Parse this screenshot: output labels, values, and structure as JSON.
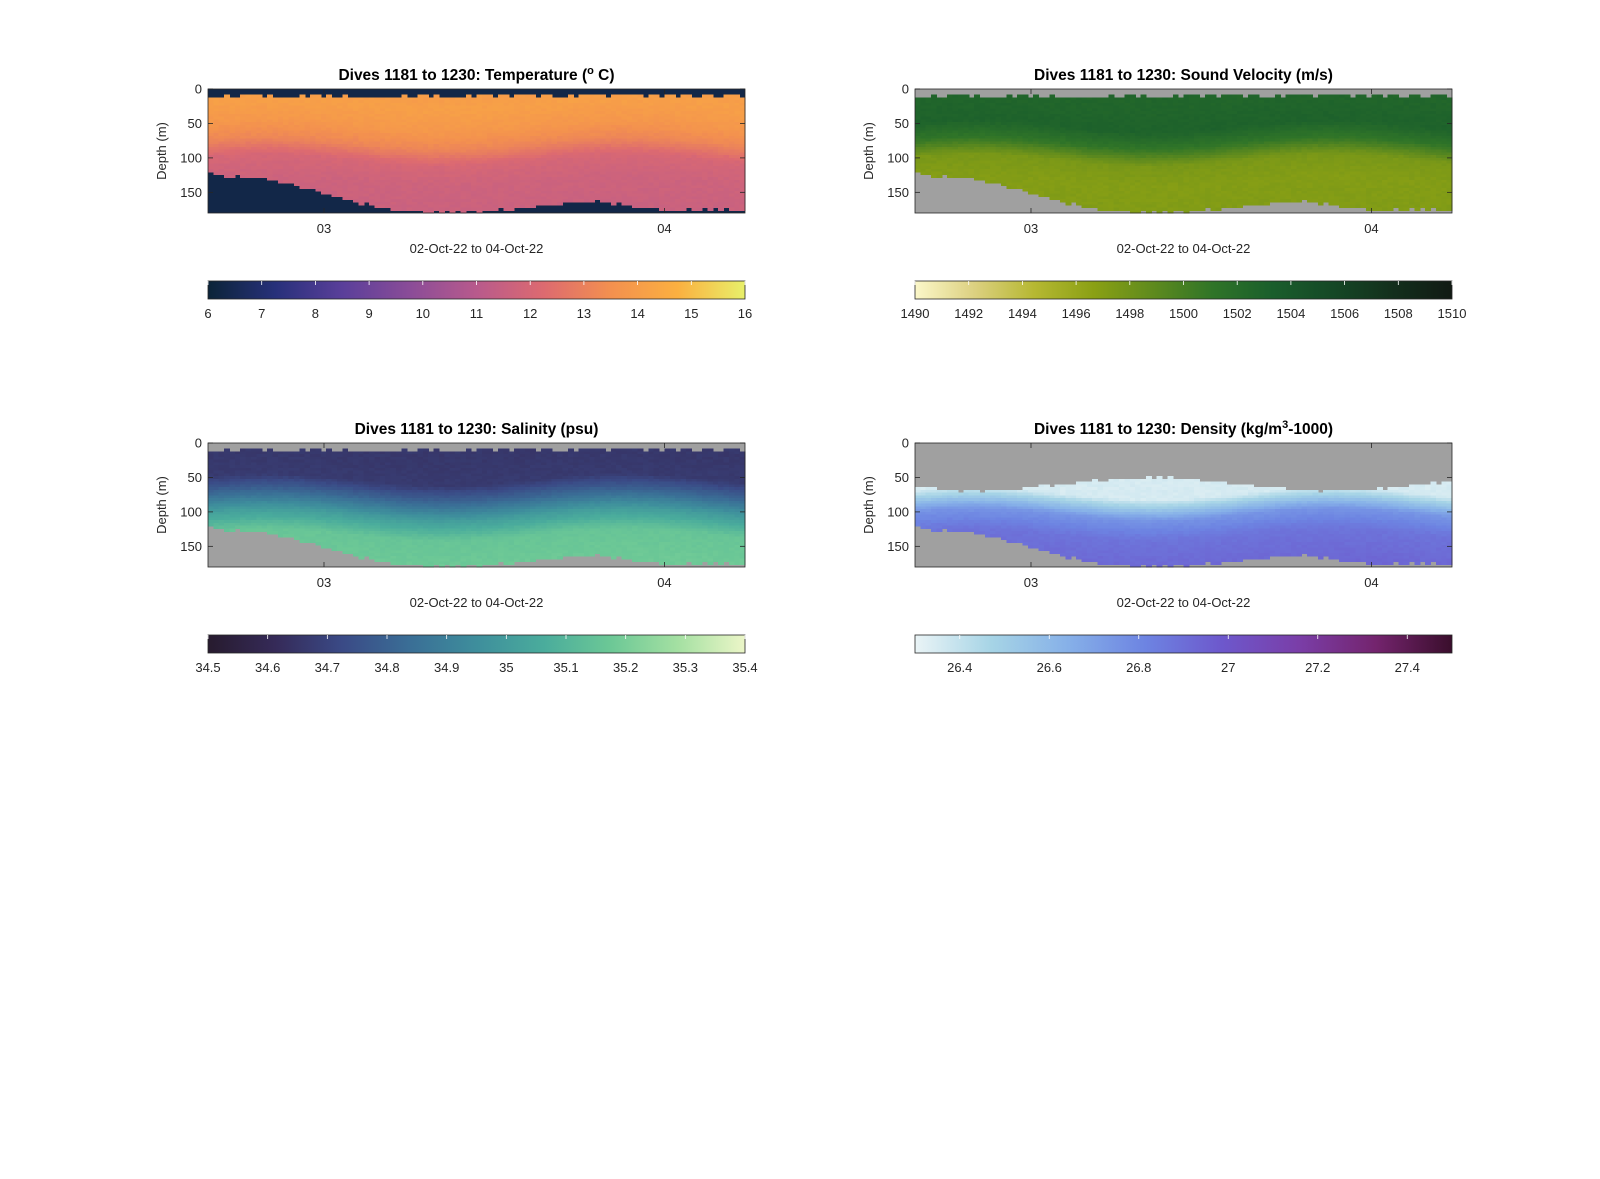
{
  "figure": {
    "background": "#ffffff"
  },
  "chart_data": [
    {
      "type": "heatmap",
      "title": "Dives 1181 to 1230: Temperature (",
      "title_sup": "o",
      "title_end": " C)",
      "ylabel": "Depth (m)",
      "xlabel": "02-Oct-22 to 04-Oct-22",
      "x_ticks": [
        "03",
        "04"
      ],
      "y_ticks": [
        "0",
        "50",
        "100",
        "150"
      ],
      "ylim": [
        0,
        180
      ],
      "y_reversed": true,
      "colorbar": {
        "range": [
          6,
          16
        ],
        "ticks": [
          "6",
          "7",
          "8",
          "9",
          "10",
          "11",
          "12",
          "13",
          "14",
          "15",
          "16"
        ],
        "colormap": [
          "#0b2438",
          "#27307a",
          "#5a3f9a",
          "#8a4c98",
          "#b85a8c",
          "#dd6a70",
          "#f3904f",
          "#fbb040",
          "#e8f06a"
        ]
      },
      "surface_value": 6.3,
      "no_data_value": 6.3,
      "profiles": [
        {
          "depth": 0,
          "value": 14.0
        },
        {
          "depth": 20,
          "value": 14.1
        },
        {
          "depth": 50,
          "value": 13.8
        },
        {
          "depth": 75,
          "value": 13.2
        },
        {
          "depth": 100,
          "value": 12.0
        },
        {
          "depth": 130,
          "value": 11.7
        },
        {
          "depth": 175,
          "value": 11.6
        }
      ]
    },
    {
      "type": "heatmap",
      "title": "Dives 1181 to 1230: Sound Velocity (m/s)",
      "ylabel": "Depth (m)",
      "xlabel": "02-Oct-22 to 04-Oct-22",
      "x_ticks": [
        "03",
        "04"
      ],
      "y_ticks": [
        "0",
        "50",
        "100",
        "150"
      ],
      "ylim": [
        0,
        180
      ],
      "y_reversed": true,
      "colorbar": {
        "range": [
          1490,
          1510
        ],
        "ticks": [
          "1490",
          "1492",
          "1494",
          "1496",
          "1498",
          "1500",
          "1502",
          "1504",
          "1506",
          "1508",
          "1510"
        ],
        "colormap": [
          "#fbf7c9",
          "#dcd080",
          "#b6b832",
          "#8aa014",
          "#5e8a1e",
          "#2f7428",
          "#1a5e2c",
          "#154826",
          "#132f1c",
          "#111a14"
        ]
      },
      "no_data_color": "#a0a0a0",
      "profiles": [
        {
          "depth": 15,
          "value": 1502.6
        },
        {
          "depth": 50,
          "value": 1502.9
        },
        {
          "depth": 75,
          "value": 1501.0
        },
        {
          "depth": 100,
          "value": 1497.5
        },
        {
          "depth": 130,
          "value": 1497.0
        },
        {
          "depth": 175,
          "value": 1497.1
        }
      ]
    },
    {
      "type": "heatmap",
      "title": "Dives 1181 to 1230: Salinity (psu)",
      "ylabel": "Depth (m)",
      "xlabel": "02-Oct-22 to 04-Oct-22",
      "x_ticks": [
        "03",
        "04"
      ],
      "y_ticks": [
        "0",
        "50",
        "100",
        "150"
      ],
      "ylim": [
        0,
        180
      ],
      "y_reversed": true,
      "colorbar": {
        "range": [
          34.5,
          35.4
        ],
        "ticks": [
          "34.5",
          "34.6",
          "34.7",
          "34.8",
          "34.9",
          "35",
          "35.1",
          "35.2",
          "35.3",
          "35.4"
        ],
        "colormap": [
          "#271b2e",
          "#352a58",
          "#3a4a86",
          "#3a6e96",
          "#3e8e9c",
          "#4aac9c",
          "#6cc896",
          "#a4e0a2",
          "#ecf6c8"
        ]
      },
      "no_data_color": "#a0a0a0",
      "profiles": [
        {
          "depth": 15,
          "value": 34.66
        },
        {
          "depth": 50,
          "value": 34.67
        },
        {
          "depth": 75,
          "value": 34.82
        },
        {
          "depth": 100,
          "value": 35.0
        },
        {
          "depth": 130,
          "value": 35.16
        },
        {
          "depth": 175,
          "value": 35.18
        }
      ]
    },
    {
      "type": "heatmap",
      "title": "Dives 1181 to 1230: Density (kg/m",
      "title_sup": "3",
      "title_end": "-1000)",
      "ylabel": "Depth (m)",
      "xlabel": "02-Oct-22 to 04-Oct-22",
      "x_ticks": [
        "03",
        "04"
      ],
      "y_ticks": [
        "0",
        "50",
        "100",
        "150"
      ],
      "ylim": [
        0,
        180
      ],
      "y_reversed": true,
      "colorbar": {
        "range": [
          26.3,
          27.5
        ],
        "ticks": [
          "26.4",
          "26.6",
          "26.8",
          "27",
          "27.2",
          "27.4"
        ],
        "colormap": [
          "#eaf4f6",
          "#a6d4e6",
          "#86b0e8",
          "#6d84e2",
          "#6d58cc",
          "#7a3ea8",
          "#74246e",
          "#3a0e2c"
        ]
      },
      "no_data_color": "#a0a0a0",
      "profiles": [
        {
          "depth": 70,
          "value": 26.35
        },
        {
          "depth": 85,
          "value": 26.55
        },
        {
          "depth": 100,
          "value": 26.75
        },
        {
          "depth": 130,
          "value": 26.88
        },
        {
          "depth": 175,
          "value": 26.93
        }
      ]
    }
  ]
}
